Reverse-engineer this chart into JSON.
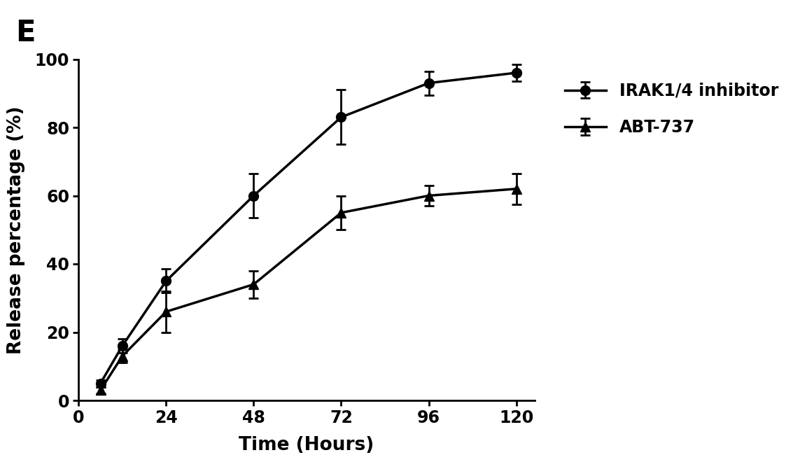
{
  "title_label": "E",
  "xlabel": "Time (Hours)",
  "ylabel": "Release percentage (%)",
  "xlim": [
    0,
    125
  ],
  "ylim": [
    0,
    100
  ],
  "xticks": [
    0,
    24,
    48,
    72,
    96,
    120
  ],
  "yticks": [
    0,
    20,
    40,
    60,
    80,
    100
  ],
  "series": [
    {
      "label": "IRAK1/4 inhibitor",
      "marker": "o",
      "x": [
        6,
        12,
        24,
        48,
        72,
        96,
        120
      ],
      "y": [
        5.0,
        16.0,
        35.0,
        60.0,
        83.0,
        93.0,
        96.0
      ],
      "yerr": [
        1.0,
        2.0,
        3.5,
        6.5,
        8.0,
        3.5,
        2.5
      ]
    },
    {
      "label": "ABT-737",
      "marker": "^",
      "x": [
        6,
        12,
        24,
        48,
        72,
        96,
        120
      ],
      "y": [
        3.0,
        13.0,
        26.0,
        34.0,
        55.0,
        60.0,
        62.0
      ],
      "yerr": [
        1.0,
        2.0,
        6.0,
        4.0,
        5.0,
        3.0,
        4.5
      ]
    }
  ],
  "line_color": "#000000",
  "background_color": "#ffffff",
  "title_fontsize": 30,
  "label_fontsize": 19,
  "tick_fontsize": 17,
  "legend_fontsize": 17,
  "linewidth": 2.5,
  "markersize": 10,
  "capsize": 5,
  "elinewidth": 2.0
}
